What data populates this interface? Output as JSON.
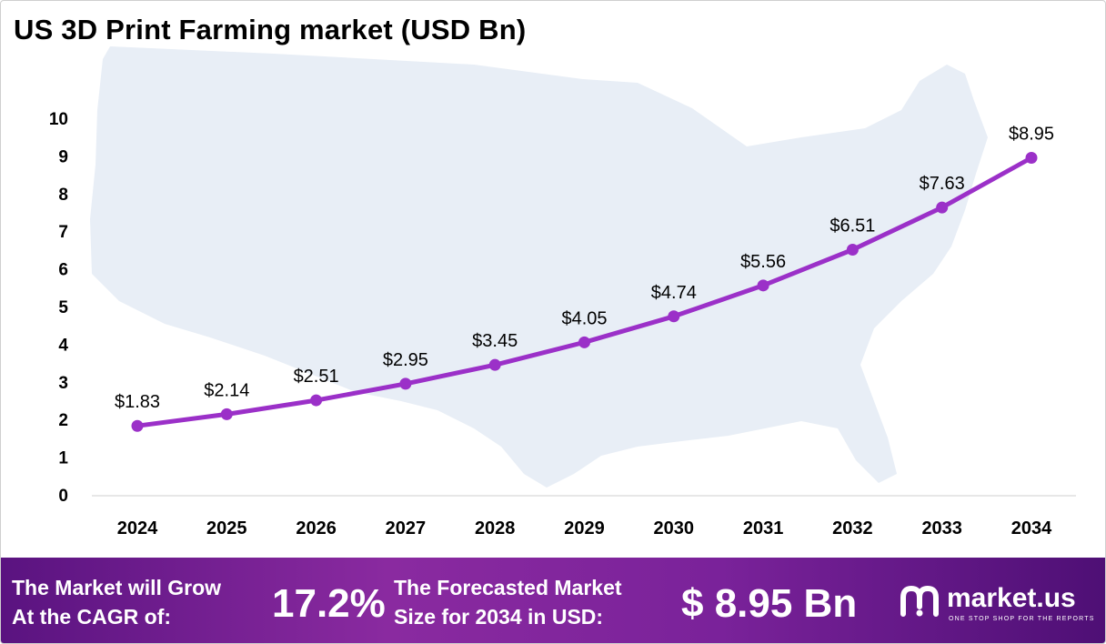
{
  "chart_data": {
    "type": "line",
    "title": "US 3D Print Farming market (USD Bn)",
    "categories": [
      "2024",
      "2025",
      "2026",
      "2027",
      "2028",
      "2029",
      "2030",
      "2031",
      "2032",
      "2033",
      "2034"
    ],
    "values": [
      1.83,
      2.14,
      2.51,
      2.95,
      3.45,
      4.05,
      4.74,
      5.56,
      6.51,
      7.63,
      8.95
    ],
    "data_labels": [
      "$1.83",
      "$2.14",
      "$2.51",
      "$2.95",
      "$3.45",
      "$4.05",
      "$4.74",
      "$5.56",
      "$6.51",
      "$7.63",
      "$8.95"
    ],
    "ylim": [
      0,
      10
    ],
    "yticks": [
      "0",
      "1",
      "2",
      "3",
      "4",
      "5",
      "6",
      "7",
      "8",
      "9",
      "10"
    ],
    "grid": false,
    "line_color": "#9b30c8",
    "background_shape": "us-map-silhouette"
  },
  "banner": {
    "cagr_text_line1": "The Market will Grow",
    "cagr_text_line2": "At the CAGR of:",
    "cagr_value": "17.2%",
    "forecast_text_line1": "The Forecasted Market",
    "forecast_text_line2": "Size for 2034 in USD:",
    "forecast_value": "$ 8.95 Bn",
    "logo_name": "market.us",
    "logo_tagline": "ONE STOP SHOP FOR THE REPORTS",
    "logo_icon": "market-us-logo-icon"
  }
}
